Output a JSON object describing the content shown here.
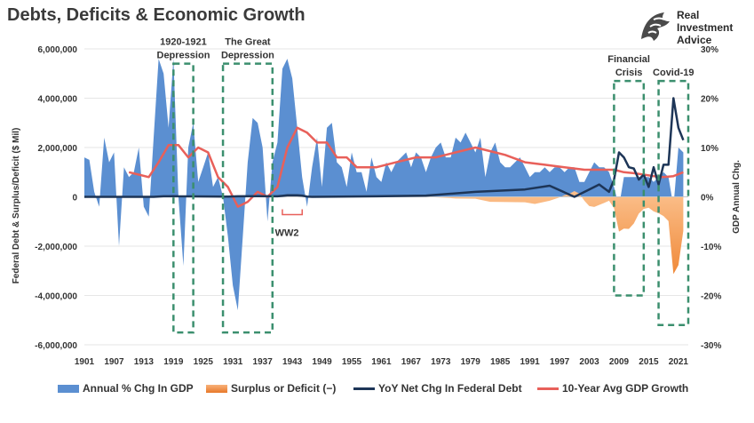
{
  "title": "Debts, Deficits & Economic Growth",
  "brand": {
    "line1": "Real",
    "line2": "Investment",
    "line3": "Advice",
    "icon": "eagle-head-icon"
  },
  "colors": {
    "gdp": "#5b8fd1",
    "surplus": "#f08a3a",
    "debt": "#1d3557",
    "avg": "#e8605a",
    "box": "#3b8f6e",
    "ww2": "#e8605a"
  },
  "legend": [
    {
      "label": "Annual % Chg In GDP",
      "kind": "area"
    },
    {
      "label": "Surplus or Deficit (−)",
      "kind": "area"
    },
    {
      "label": "YoY Net Chg In Federal Debt",
      "kind": "line"
    },
    {
      "label": "10-Year Avg GDP Growth",
      "kind": "line"
    }
  ],
  "chart_data": {
    "type": "area",
    "title": "Debts, Deficits & Economic Growth",
    "xlabel": "",
    "ylabel_left": "Federal Debt & Surplus/Deficit ($ Mil)",
    "ylabel_right": "GDP Annual Chg.",
    "x_ticks": [
      "1901",
      "1907",
      "1913",
      "1919",
      "1925",
      "1931",
      "1937",
      "1943",
      "1949",
      "1955",
      "1961",
      "1967",
      "1973",
      "1979",
      "1985",
      "1991",
      "1997",
      "2003",
      "2009",
      "2015",
      "2021"
    ],
    "y_left_ticks": [
      "6,000,000",
      "4,000,000",
      "2,000,000",
      "0",
      "-2,000,000",
      "-4,000,000",
      "-6,000,000"
    ],
    "y_left_lim": [
      -6000000,
      6000000
    ],
    "y_right_ticks": [
      "30%",
      "20%",
      "10%",
      "0%",
      "-10%",
      "-20%",
      "-30%"
    ],
    "y_right_lim": [
      -30,
      30
    ],
    "x_range": [
      1901,
      2023
    ],
    "annotations": [
      {
        "label": [
          "1920-1921",
          "Depression"
        ],
        "x0": 1919,
        "x1": 1923,
        "y_top": 27,
        "y_bottom": -27.5
      },
      {
        "label": [
          "The Great",
          "Depression"
        ],
        "x0": 1929,
        "x1": 1939,
        "y_top": 27,
        "y_bottom": -27.5
      },
      {
        "label": [
          "Financial",
          "Crisis"
        ],
        "x0": 2008,
        "x1": 2014,
        "y_top": 23.5,
        "y_bottom": -20
      },
      {
        "label": [
          "Covid-19"
        ],
        "x0": 2017,
        "x1": 2023,
        "y_top": 23.5,
        "y_bottom": -26
      }
    ],
    "ww2_label": "WW2",
    "series": [
      {
        "name": "Annual % Chg In GDP",
        "type": "area",
        "axis": "right",
        "x": [
          1901,
          1902,
          1903,
          1904,
          1905,
          1906,
          1907,
          1908,
          1909,
          1910,
          1911,
          1912,
          1913,
          1914,
          1915,
          1916,
          1917,
          1918,
          1919,
          1920,
          1921,
          1922,
          1923,
          1924,
          1925,
          1926,
          1927,
          1928,
          1929,
          1930,
          1931,
          1932,
          1933,
          1934,
          1935,
          1936,
          1937,
          1938,
          1939,
          1940,
          1941,
          1942,
          1943,
          1944,
          1945,
          1946,
          1947,
          1948,
          1949,
          1950,
          1951,
          1952,
          1953,
          1954,
          1955,
          1956,
          1957,
          1958,
          1959,
          1960,
          1961,
          1962,
          1963,
          1964,
          1965,
          1966,
          1967,
          1968,
          1969,
          1970,
          1971,
          1972,
          1973,
          1974,
          1975,
          1976,
          1977,
          1978,
          1979,
          1980,
          1981,
          1982,
          1983,
          1984,
          1985,
          1986,
          1987,
          1988,
          1989,
          1990,
          1991,
          1992,
          1993,
          1994,
          1995,
          1996,
          1997,
          1998,
          1999,
          2000,
          2001,
          2002,
          2003,
          2004,
          2005,
          2006,
          2007,
          2008,
          2009,
          2010,
          2011,
          2012,
          2013,
          2014,
          2015,
          2016,
          2017,
          2018,
          2019,
          2020,
          2021,
          2022
        ],
        "values": [
          8,
          7.5,
          1,
          -2,
          12,
          7,
          9,
          -10,
          6,
          4,
          5,
          10,
          -2,
          -4,
          12,
          28,
          25,
          14,
          28,
          0,
          -14,
          10,
          15,
          3,
          6,
          9,
          2,
          4,
          0,
          -8,
          -18,
          -23,
          -8,
          7,
          16,
          15,
          10,
          -5,
          7,
          11,
          26,
          28,
          24,
          14,
          4,
          -2,
          6,
          12,
          2,
          14,
          15,
          7,
          6,
          2,
          9,
          5,
          5,
          1,
          8,
          4,
          3,
          7,
          5,
          7,
          8,
          9,
          6,
          9,
          8,
          5,
          8,
          10,
          11,
          8,
          8,
          12,
          11,
          13,
          11,
          9,
          12,
          4,
          9,
          11,
          7,
          6,
          6,
          7,
          8,
          6,
          4,
          5,
          5,
          6,
          5,
          6,
          6,
          5,
          6,
          6,
          3,
          3,
          5,
          7,
          6,
          6,
          5,
          2,
          -2,
          4,
          4,
          4,
          4,
          4,
          4,
          3,
          4,
          5,
          4,
          -2,
          10,
          9
        ]
      },
      {
        "name": "Surplus or Deficit (−)",
        "type": "area",
        "axis": "left",
        "x": [
          1901,
          1970,
          1975,
          1976,
          1980,
          1983,
          1985,
          1990,
          1992,
          1995,
          1997,
          1998,
          1999,
          2000,
          2001,
          2002,
          2003,
          2004,
          2006,
          2007,
          2008,
          2009,
          2010,
          2011,
          2012,
          2013,
          2014,
          2015,
          2016,
          2017,
          2018,
          2019,
          2020,
          2021,
          2022
        ],
        "values": [
          0,
          0,
          -50000,
          -70000,
          -75000,
          -200000,
          -210000,
          -220000,
          -290000,
          -160000,
          -20000,
          70000,
          125000,
          235000,
          128000,
          -157000,
          -375000,
          -410000,
          -250000,
          -160000,
          -460000,
          -1410000,
          -1290000,
          -1300000,
          -1080000,
          -680000,
          -490000,
          -440000,
          -590000,
          -665000,
          -780000,
          -980000,
          -3130000,
          -2770000,
          -1380000
        ]
      },
      {
        "name": "YoY Net Chg In Federal Debt",
        "type": "line",
        "axis": "left",
        "x": [
          1901,
          1915,
          1917,
          1918,
          1919,
          1920,
          1930,
          1932,
          1936,
          1940,
          1941,
          1942,
          1943,
          1944,
          1945,
          1946,
          1947,
          1960,
          1970,
          1980,
          1990,
          1995,
          2000,
          2003,
          2005,
          2007,
          2008,
          2009,
          2010,
          2011,
          2012,
          2013,
          2014,
          2015,
          2016,
          2017,
          2018,
          2019,
          2020,
          2021,
          2022
        ],
        "values": [
          0,
          0,
          20000,
          20000,
          30000,
          20000,
          10000,
          20000,
          30000,
          20000,
          40000,
          60000,
          60000,
          60000,
          50000,
          10000,
          0,
          20000,
          50000,
          200000,
          300000,
          450000,
          0,
          300000,
          500000,
          200000,
          700000,
          1800000,
          1600000,
          1200000,
          1150000,
          700000,
          900000,
          400000,
          1200000,
          500000,
          1300000,
          1300000,
          4000000,
          2800000,
          2300000
        ]
      },
      {
        "name": "10-Year Avg GDP Growth",
        "type": "line",
        "axis": "right",
        "x": [
          1910,
          1912,
          1914,
          1916,
          1918,
          1920,
          1922,
          1924,
          1926,
          1928,
          1930,
          1932,
          1934,
          1936,
          1938,
          1940,
          1942,
          1944,
          1946,
          1948,
          1950,
          1952,
          1954,
          1956,
          1958,
          1960,
          1964,
          1968,
          1972,
          1976,
          1980,
          1984,
          1986,
          1990,
          1994,
          1998,
          2002,
          2006,
          2008,
          2010,
          2012,
          2014,
          2016,
          2018,
          2020,
          2022
        ],
        "values": [
          5,
          4.5,
          4,
          7,
          10.5,
          10.5,
          8,
          10,
          9,
          4,
          2,
          -2,
          -1,
          1,
          0,
          2,
          10,
          14,
          13,
          11,
          11,
          8,
          8,
          6,
          6,
          6,
          7,
          8,
          8,
          9,
          10,
          9,
          8.5,
          7,
          6.5,
          6,
          5.5,
          5.5,
          5.5,
          5,
          4.8,
          4.5,
          4.2,
          4,
          4.2,
          5
        ]
      }
    ]
  }
}
